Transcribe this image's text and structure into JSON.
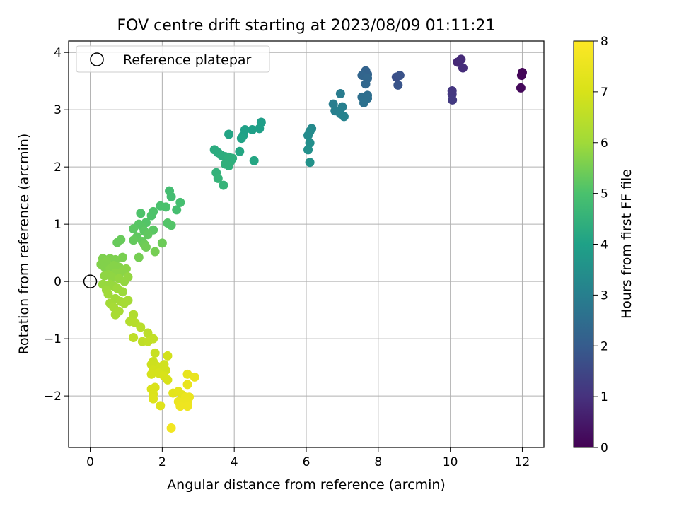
{
  "chart_data": {
    "type": "scatter",
    "title": "FOV centre drift starting at 2023/08/09 01:11:21",
    "xlabel": "Angular distance from reference (arcmin)",
    "ylabel": "Rotation from reference (arcmin)",
    "xlim": [
      -0.6,
      12.6
    ],
    "ylim": [
      -2.9,
      4.2
    ],
    "xticks": [
      0,
      2,
      4,
      6,
      8,
      10,
      12
    ],
    "yticks": [
      -2,
      -1,
      0,
      1,
      2,
      3,
      4
    ],
    "grid": true,
    "legend": {
      "position": "top-left",
      "entries": [
        "Reference platepar"
      ]
    },
    "reference_point": {
      "x": 0,
      "y": 0
    },
    "colorbar": {
      "label": "Hours from first FF file",
      "min": 0,
      "max": 8,
      "ticks": [
        0,
        1,
        2,
        3,
        4,
        5,
        6,
        7,
        8
      ],
      "colormap": "viridis"
    },
    "series": [
      {
        "points": [
          [
            12.0,
            3.65,
            0.1
          ],
          [
            11.98,
            3.6,
            0.1
          ],
          [
            11.96,
            3.38,
            0.15
          ],
          [
            10.2,
            3.83,
            0.8
          ],
          [
            10.3,
            3.88,
            0.85
          ],
          [
            10.35,
            3.73,
            0.9
          ],
          [
            10.05,
            3.33,
            1.1
          ],
          [
            10.05,
            3.27,
            1.15
          ],
          [
            10.06,
            3.17,
            1.2
          ],
          [
            8.5,
            3.57,
            1.7
          ],
          [
            8.6,
            3.6,
            1.75
          ],
          [
            8.55,
            3.43,
            1.8
          ],
          [
            7.65,
            3.68,
            2.2
          ],
          [
            7.7,
            3.62,
            2.2
          ],
          [
            7.55,
            3.6,
            2.25
          ],
          [
            7.7,
            3.55,
            2.3
          ],
          [
            7.65,
            3.45,
            2.3
          ],
          [
            7.7,
            3.25,
            2.5
          ],
          [
            7.55,
            3.22,
            2.55
          ],
          [
            7.7,
            3.2,
            2.55
          ],
          [
            7.6,
            3.12,
            2.6
          ],
          [
            6.95,
            3.28,
            2.9
          ],
          [
            6.75,
            3.1,
            2.95
          ],
          [
            7.0,
            3.05,
            3.0
          ],
          [
            6.8,
            2.98,
            3.0
          ],
          [
            6.95,
            2.93,
            3.05
          ],
          [
            7.05,
            2.88,
            3.1
          ],
          [
            6.15,
            2.67,
            3.3
          ],
          [
            6.1,
            2.62,
            3.35
          ],
          [
            6.05,
            2.55,
            3.35
          ],
          [
            6.1,
            2.42,
            3.45
          ],
          [
            6.05,
            2.3,
            3.5
          ],
          [
            6.1,
            2.08,
            3.55
          ],
          [
            4.75,
            2.78,
            3.9
          ],
          [
            4.7,
            2.67,
            3.95
          ],
          [
            4.5,
            2.65,
            3.95
          ],
          [
            4.3,
            2.65,
            4.0
          ],
          [
            4.25,
            2.55,
            4.0
          ],
          [
            4.2,
            2.5,
            4.05
          ],
          [
            3.85,
            2.57,
            4.1
          ],
          [
            4.15,
            2.27,
            4.15
          ],
          [
            4.55,
            2.11,
            4.15
          ],
          [
            3.45,
            2.3,
            4.3
          ],
          [
            3.55,
            2.25,
            4.3
          ],
          [
            3.65,
            2.2,
            4.35
          ],
          [
            3.75,
            2.18,
            4.35
          ],
          [
            3.85,
            2.17,
            4.4
          ],
          [
            3.95,
            2.15,
            4.4
          ],
          [
            3.9,
            2.1,
            4.4
          ],
          [
            3.75,
            2.05,
            4.45
          ],
          [
            3.85,
            2.02,
            4.45
          ],
          [
            3.5,
            1.9,
            4.5
          ],
          [
            3.55,
            1.8,
            4.55
          ],
          [
            3.7,
            1.68,
            4.55
          ],
          [
            2.2,
            1.58,
            4.85
          ],
          [
            2.25,
            1.48,
            4.85
          ],
          [
            2.5,
            1.38,
            4.9
          ],
          [
            2.4,
            1.25,
            4.9
          ],
          [
            1.95,
            1.32,
            5.0
          ],
          [
            2.1,
            1.3,
            5.0
          ],
          [
            1.75,
            1.22,
            5.05
          ],
          [
            1.7,
            1.15,
            5.05
          ],
          [
            1.4,
            1.19,
            5.05
          ],
          [
            2.15,
            1.02,
            5.1
          ],
          [
            2.25,
            0.98,
            5.1
          ],
          [
            1.55,
            1.03,
            5.1
          ],
          [
            1.35,
            1.0,
            5.15
          ],
          [
            1.45,
            0.95,
            5.15
          ],
          [
            1.2,
            0.92,
            5.2
          ],
          [
            1.5,
            0.88,
            5.2
          ],
          [
            1.75,
            0.9,
            5.2
          ],
          [
            1.6,
            0.82,
            5.25
          ],
          [
            1.3,
            0.78,
            5.25
          ],
          [
            1.2,
            0.72,
            5.3
          ],
          [
            1.45,
            0.7,
            5.3
          ],
          [
            0.85,
            0.73,
            5.35
          ],
          [
            0.75,
            0.68,
            5.35
          ],
          [
            1.5,
            0.65,
            5.4
          ],
          [
            2.0,
            0.67,
            5.4
          ],
          [
            1.55,
            0.6,
            5.45
          ],
          [
            1.8,
            0.52,
            5.5
          ],
          [
            1.35,
            0.42,
            5.5
          ],
          [
            0.9,
            0.42,
            5.55
          ],
          [
            0.35,
            0.4,
            5.6
          ],
          [
            0.55,
            0.4,
            5.6
          ],
          [
            0.7,
            0.38,
            5.6
          ],
          [
            0.45,
            0.35,
            5.65
          ],
          [
            0.3,
            0.3,
            5.65
          ],
          [
            0.4,
            0.25,
            5.65
          ],
          [
            0.55,
            0.22,
            5.7
          ],
          [
            0.65,
            0.28,
            5.7
          ],
          [
            0.8,
            0.25,
            5.7
          ],
          [
            1.0,
            0.22,
            5.75
          ],
          [
            0.9,
            0.18,
            5.75
          ],
          [
            0.7,
            0.15,
            5.75
          ],
          [
            0.5,
            0.12,
            5.8
          ],
          [
            0.4,
            0.1,
            5.8
          ],
          [
            0.6,
            0.08,
            5.8
          ],
          [
            0.8,
            0.05,
            5.85
          ],
          [
            1.05,
            0.08,
            5.85
          ],
          [
            0.95,
            0.0,
            5.85
          ],
          [
            0.55,
            -0.05,
            5.9
          ],
          [
            0.65,
            -0.08,
            5.9
          ],
          [
            0.35,
            -0.05,
            5.9
          ],
          [
            0.75,
            -0.12,
            5.95
          ],
          [
            0.45,
            -0.15,
            5.95
          ],
          [
            0.9,
            -0.18,
            5.95
          ],
          [
            0.5,
            -0.22,
            6.0
          ],
          [
            0.7,
            -0.3,
            6.0
          ],
          [
            0.85,
            -0.35,
            6.05
          ],
          [
            0.55,
            -0.38,
            6.05
          ],
          [
            1.05,
            -0.33,
            6.1
          ],
          [
            0.95,
            -0.38,
            6.1
          ],
          [
            0.65,
            -0.45,
            6.1
          ],
          [
            0.8,
            -0.52,
            6.15
          ],
          [
            0.7,
            -0.58,
            6.15
          ],
          [
            1.2,
            -0.58,
            6.3
          ],
          [
            1.1,
            -0.7,
            6.35
          ],
          [
            1.25,
            -0.72,
            6.4
          ],
          [
            1.4,
            -0.8,
            6.45
          ],
          [
            1.6,
            -0.9,
            6.5
          ],
          [
            1.2,
            -0.98,
            6.55
          ],
          [
            1.45,
            -1.05,
            6.55
          ],
          [
            1.6,
            -1.05,
            6.6
          ],
          [
            1.75,
            -1.0,
            6.6
          ],
          [
            1.8,
            -1.25,
            6.7
          ],
          [
            1.75,
            -1.4,
            6.75
          ],
          [
            1.7,
            -1.45,
            6.8
          ],
          [
            1.85,
            -1.48,
            6.8
          ],
          [
            1.95,
            -1.5,
            6.85
          ],
          [
            2.05,
            -1.45,
            6.85
          ],
          [
            2.15,
            -1.3,
            6.9
          ],
          [
            2.1,
            -1.55,
            6.9
          ],
          [
            1.75,
            -1.55,
            6.9
          ],
          [
            1.7,
            -1.62,
            6.95
          ],
          [
            1.9,
            -1.6,
            6.95
          ],
          [
            2.05,
            -1.65,
            7.0
          ],
          [
            2.15,
            -1.72,
            7.0
          ],
          [
            1.8,
            -1.85,
            7.05
          ],
          [
            1.7,
            -1.88,
            7.05
          ],
          [
            1.75,
            -1.97,
            7.1
          ],
          [
            1.75,
            -2.05,
            7.15
          ],
          [
            1.95,
            -2.17,
            7.2
          ],
          [
            2.3,
            -1.95,
            7.3
          ],
          [
            2.45,
            -1.92,
            7.35
          ],
          [
            2.55,
            -1.98,
            7.35
          ],
          [
            2.7,
            -1.62,
            7.4
          ],
          [
            2.9,
            -1.67,
            7.45
          ],
          [
            2.7,
            -1.8,
            7.45
          ],
          [
            2.65,
            -2.02,
            7.5
          ],
          [
            2.75,
            -2.02,
            7.5
          ],
          [
            2.7,
            -2.1,
            7.55
          ],
          [
            2.6,
            -2.13,
            7.55
          ],
          [
            2.45,
            -2.1,
            7.55
          ],
          [
            2.5,
            -2.18,
            7.6
          ],
          [
            2.7,
            -2.18,
            7.6
          ],
          [
            2.25,
            -2.56,
            7.7
          ]
        ]
      }
    ]
  }
}
